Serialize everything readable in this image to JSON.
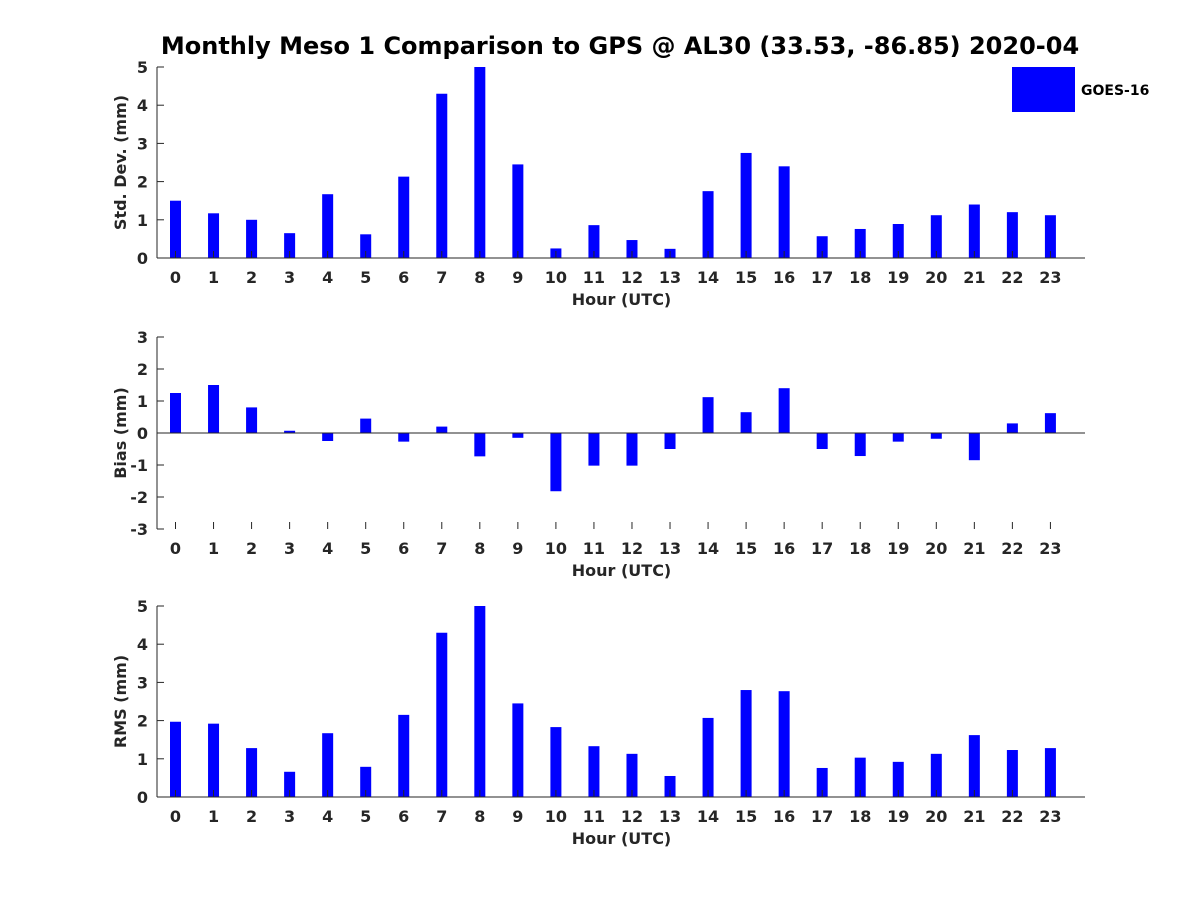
{
  "figure": {
    "title": "Monthly Meso 1 Comparison to GPS @ AL30 (33.53, -86.85) 2020-04"
  },
  "legend": {
    "label": "GOES-16",
    "color": "#0000ff"
  },
  "chart_data": [
    {
      "type": "bar",
      "name": "stddev",
      "categories": [
        "0",
        "1",
        "2",
        "3",
        "4",
        "5",
        "6",
        "7",
        "8",
        "9",
        "10",
        "11",
        "12",
        "13",
        "14",
        "15",
        "16",
        "17",
        "18",
        "19",
        "20",
        "21",
        "22",
        "23"
      ],
      "series": [
        {
          "name": "GOES-16",
          "color": "#0000ff",
          "values": [
            1.5,
            1.17,
            1.0,
            0.65,
            1.67,
            0.62,
            2.13,
            4.3,
            5.0,
            2.45,
            0.25,
            0.86,
            0.47,
            0.24,
            1.75,
            2.75,
            2.4,
            0.57,
            0.76,
            0.89,
            1.12,
            1.4,
            1.2,
            1.12
          ]
        }
      ],
      "xlabel": "Hour (UTC)",
      "ylabel": "Std. Dev. (mm)",
      "ylim": [
        0,
        5
      ],
      "yticks": [
        0,
        1,
        2,
        3,
        4,
        5
      ],
      "grid": false,
      "legend": "top-right"
    },
    {
      "type": "bar",
      "name": "bias",
      "categories": [
        "0",
        "1",
        "2",
        "3",
        "4",
        "5",
        "6",
        "7",
        "8",
        "9",
        "10",
        "11",
        "12",
        "13",
        "14",
        "15",
        "16",
        "17",
        "18",
        "19",
        "20",
        "21",
        "22",
        "23"
      ],
      "series": [
        {
          "name": "GOES-16",
          "color": "#0000ff",
          "values": [
            1.25,
            1.5,
            0.8,
            0.07,
            -0.25,
            0.45,
            -0.27,
            0.2,
            -0.73,
            -0.15,
            -1.82,
            -1.02,
            -1.02,
            -0.5,
            1.12,
            0.65,
            1.4,
            -0.5,
            -0.72,
            -0.27,
            -0.18,
            -0.85,
            0.3,
            0.62
          ]
        }
      ],
      "xlabel": "Hour (UTC)",
      "ylabel": "Bias (mm)",
      "ylim": [
        -3,
        3
      ],
      "yticks": [
        -3,
        -2,
        -1,
        0,
        1,
        2,
        3
      ],
      "grid": false
    },
    {
      "type": "bar",
      "name": "rms",
      "categories": [
        "0",
        "1",
        "2",
        "3",
        "4",
        "5",
        "6",
        "7",
        "8",
        "9",
        "10",
        "11",
        "12",
        "13",
        "14",
        "15",
        "16",
        "17",
        "18",
        "19",
        "20",
        "21",
        "22",
        "23"
      ],
      "series": [
        {
          "name": "GOES-16",
          "color": "#0000ff",
          "values": [
            1.97,
            1.92,
            1.28,
            0.66,
            1.67,
            0.79,
            2.15,
            4.3,
            5.0,
            2.45,
            1.83,
            1.33,
            1.13,
            0.55,
            2.07,
            2.8,
            2.77,
            0.76,
            1.03,
            0.92,
            1.13,
            1.62,
            1.23,
            1.28
          ]
        }
      ],
      "xlabel": "Hour (UTC)",
      "ylabel": "RMS (mm)",
      "ylim": [
        0,
        5
      ],
      "yticks": [
        0,
        1,
        2,
        3,
        4,
        5
      ],
      "grid": false
    }
  ]
}
